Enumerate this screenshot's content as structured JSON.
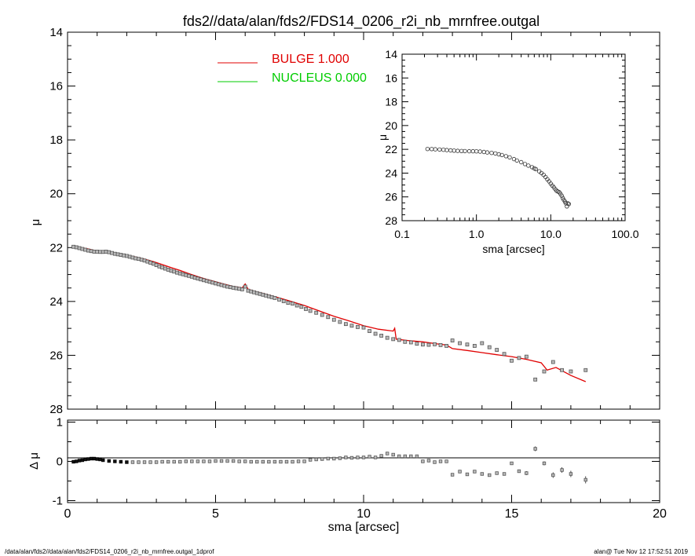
{
  "title": "fds2//data/alan/fds2/FDS14_0206_r2i_nb_mrnfree.outgal",
  "footer_left": "/data/alan/fds2//data/alan/fds2/FDS14_0206_r2i_nb_mrnfree.outgal_1dprof",
  "footer_right": "alan@  Tue Nov 12 17:52:51 2019",
  "colors": {
    "bulge": "#e00000",
    "nucleus": "#00cc00",
    "data": "#555555",
    "axis": "#000000"
  },
  "chart_data": [
    {
      "id": "main",
      "type": "scatter",
      "xlabel": "sma [arcsec]",
      "ylabel": "μ",
      "xlim": [
        0,
        20
      ],
      "ylim": [
        28,
        14
      ],
      "xticks": [
        0,
        5,
        10,
        15,
        20
      ],
      "yticks": [
        14,
        16,
        18,
        20,
        22,
        24,
        26,
        28
      ],
      "legend": {
        "placement": "top-center",
        "entries": [
          {
            "label": "BULGE  1.000",
            "color": "#e00000"
          },
          {
            "label": "NUCLEUS  0.000",
            "color": "#00cc00"
          }
        ]
      },
      "observed": {
        "x": [
          0.2,
          0.3,
          0.4,
          0.5,
          0.6,
          0.7,
          0.8,
          0.9,
          1.0,
          1.1,
          1.2,
          1.3,
          1.4,
          1.5,
          1.6,
          1.7,
          1.8,
          1.9,
          2.0,
          2.1,
          2.2,
          2.3,
          2.4,
          2.5,
          2.6,
          2.7,
          2.8,
          2.9,
          3.0,
          3.1,
          3.2,
          3.3,
          3.4,
          3.5,
          3.6,
          3.7,
          3.8,
          3.9,
          4.0,
          4.1,
          4.2,
          4.3,
          4.4,
          4.5,
          4.6,
          4.7,
          4.8,
          4.9,
          5.0,
          5.1,
          5.2,
          5.3,
          5.4,
          5.5,
          5.6,
          5.7,
          5.8,
          5.9,
          6.0,
          6.1,
          6.2,
          6.3,
          6.4,
          6.5,
          6.6,
          6.7,
          6.8,
          6.9,
          7.0,
          7.15,
          7.3,
          7.45,
          7.6,
          7.75,
          7.9,
          8.05,
          8.2,
          8.4,
          8.6,
          8.8,
          9.0,
          9.2,
          9.4,
          9.6,
          9.8,
          10.0,
          10.2,
          10.4,
          10.6,
          10.8,
          11.0,
          11.2,
          11.4,
          11.6,
          11.8,
          12.0,
          12.2,
          12.4,
          12.6,
          12.8,
          13.0,
          13.25,
          13.5,
          13.75,
          14.0,
          14.25,
          14.5,
          14.75,
          15.0,
          15.25,
          15.5,
          15.8,
          16.1,
          16.4,
          16.7,
          17.0,
          17.5
        ],
        "y": [
          21.97,
          21.99,
          22.02,
          22.05,
          22.08,
          22.11,
          22.13,
          22.15,
          22.15,
          22.16,
          22.16,
          22.15,
          22.17,
          22.2,
          22.23,
          22.25,
          22.27,
          22.29,
          22.31,
          22.34,
          22.37,
          22.4,
          22.42,
          22.45,
          22.48,
          22.52,
          22.56,
          22.6,
          22.65,
          22.7,
          22.74,
          22.78,
          22.82,
          22.86,
          22.89,
          22.93,
          22.96,
          22.99,
          23.02,
          23.05,
          23.08,
          23.12,
          23.15,
          23.18,
          23.21,
          23.24,
          23.27,
          23.3,
          23.33,
          23.36,
          23.39,
          23.42,
          23.45,
          23.47,
          23.49,
          23.51,
          23.53,
          23.55,
          23.45,
          23.6,
          23.63,
          23.66,
          23.69,
          23.72,
          23.75,
          23.78,
          23.81,
          23.84,
          23.87,
          23.93,
          23.99,
          24.05,
          24.08,
          24.15,
          24.2,
          24.28,
          24.35,
          24.42,
          24.5,
          24.58,
          24.68,
          24.76,
          24.84,
          24.9,
          24.95,
          24.97,
          25.1,
          25.2,
          25.27,
          25.35,
          25.4,
          25.43,
          25.5,
          25.52,
          25.57,
          25.6,
          25.61,
          25.59,
          25.62,
          25.65,
          25.45,
          25.55,
          25.6,
          25.65,
          25.55,
          25.7,
          25.8,
          25.95,
          26.2,
          26.1,
          26.05,
          26.9,
          26.6,
          26.25,
          26.55,
          26.6,
          26.55
        ]
      },
      "bulge_model": {
        "name": "BULGE  1.000",
        "x": [
          0.2,
          0.3,
          0.5,
          0.7,
          0.9,
          1.1,
          1.3,
          1.5,
          1.7,
          2.0,
          2.3,
          2.6,
          2.9,
          3.2,
          3.5,
          3.8,
          4.1,
          4.4,
          4.7,
          5.0,
          5.3,
          5.6,
          5.9,
          6.0,
          6.1,
          6.3,
          6.6,
          7.0,
          7.5,
          8.0,
          8.5,
          9.0,
          9.5,
          10.0,
          10.5,
          11.0,
          11.05,
          11.1,
          11.5,
          12.0,
          12.5,
          12.8,
          13.0,
          13.5,
          14.0,
          14.5,
          15.0,
          15.5,
          16.0,
          16.2,
          16.5,
          17.0,
          17.5
        ],
        "y": [
          21.95,
          21.97,
          22.01,
          22.05,
          22.1,
          22.12,
          22.13,
          22.17,
          22.22,
          22.28,
          22.35,
          22.43,
          22.52,
          22.63,
          22.74,
          22.85,
          22.97,
          23.08,
          23.18,
          23.27,
          23.36,
          23.44,
          23.5,
          23.35,
          23.55,
          23.62,
          23.7,
          23.82,
          23.98,
          24.15,
          24.35,
          24.55,
          24.72,
          24.9,
          25.03,
          25.1,
          25.0,
          25.4,
          25.45,
          25.5,
          25.58,
          25.62,
          25.75,
          25.82,
          25.9,
          25.98,
          26.05,
          26.15,
          26.28,
          26.55,
          26.45,
          26.75,
          26.98
        ]
      }
    },
    {
      "id": "residual",
      "type": "scatter",
      "xlabel": "sma [arcsec]",
      "ylabel": "Δ μ",
      "xlim": [
        0,
        20
      ],
      "ylim": [
        -1.05,
        1.05
      ],
      "xticks": [
        0,
        5,
        10,
        15,
        20
      ],
      "yticks": [
        -1,
        0,
        1
      ],
      "zero_line": 0,
      "x": [
        0.2,
        0.3,
        0.4,
        0.5,
        0.6,
        0.7,
        0.8,
        0.9,
        1.0,
        1.1,
        1.2,
        1.4,
        1.6,
        1.8,
        2.0,
        2.2,
        2.4,
        2.6,
        2.8,
        3.0,
        3.2,
        3.4,
        3.6,
        3.8,
        4.0,
        4.2,
        4.4,
        4.6,
        4.8,
        5.0,
        5.2,
        5.4,
        5.6,
        5.8,
        6.0,
        6.2,
        6.4,
        6.6,
        6.8,
        7.0,
        7.2,
        7.4,
        7.6,
        7.8,
        8.0,
        8.2,
        8.4,
        8.6,
        8.8,
        9.0,
        9.2,
        9.4,
        9.6,
        9.8,
        10.0,
        10.2,
        10.4,
        10.6,
        10.8,
        11.0,
        11.2,
        11.4,
        11.6,
        11.8,
        12.0,
        12.2,
        12.4,
        12.6,
        12.8,
        13.0,
        13.25,
        13.5,
        13.75,
        14.0,
        14.25,
        14.5,
        14.75,
        15.0,
        15.25,
        15.5,
        15.8,
        16.1,
        16.4,
        16.7,
        17.0,
        17.5
      ],
      "y": [
        -0.01,
        0.0,
        0.02,
        0.03,
        0.05,
        0.06,
        0.07,
        0.07,
        0.06,
        0.05,
        0.03,
        0.01,
        0.0,
        -0.01,
        -0.02,
        -0.02,
        -0.02,
        -0.02,
        -0.02,
        -0.02,
        -0.01,
        -0.01,
        -0.01,
        -0.01,
        0.0,
        0.0,
        0.0,
        0.0,
        0.0,
        0.01,
        0.01,
        0.01,
        0.01,
        0.0,
        0.0,
        -0.01,
        -0.01,
        -0.01,
        -0.01,
        -0.01,
        -0.01,
        -0.01,
        -0.01,
        0.0,
        0.0,
        0.04,
        0.05,
        0.06,
        0.07,
        0.07,
        0.08,
        0.1,
        0.09,
        0.1,
        0.1,
        0.12,
        0.1,
        0.14,
        0.2,
        0.17,
        0.13,
        0.13,
        0.13,
        0.13,
        0.0,
        0.02,
        -0.02,
        0.0,
        0.0,
        -0.34,
        -0.26,
        -0.33,
        -0.26,
        -0.32,
        -0.35,
        -0.3,
        -0.32,
        -0.05,
        -0.25,
        -0.3,
        0.32,
        -0.05,
        -0.35,
        -0.22,
        -0.32,
        -0.47
      ],
      "err": [
        0.01,
        0.01,
        0.01,
        0.01,
        0.01,
        0.01,
        0.01,
        0.01,
        0.01,
        0.01,
        0.01,
        0.01,
        0.01,
        0.01,
        0.01,
        0.01,
        0.01,
        0.01,
        0.01,
        0.01,
        0.01,
        0.01,
        0.01,
        0.01,
        0.01,
        0.01,
        0.01,
        0.01,
        0.01,
        0.01,
        0.01,
        0.01,
        0.01,
        0.01,
        0.01,
        0.01,
        0.01,
        0.01,
        0.01,
        0.01,
        0.01,
        0.01,
        0.01,
        0.01,
        0.01,
        0.01,
        0.01,
        0.01,
        0.01,
        0.01,
        0.01,
        0.01,
        0.01,
        0.01,
        0.01,
        0.01,
        0.01,
        0.02,
        0.02,
        0.02,
        0.02,
        0.02,
        0.02,
        0.02,
        0.02,
        0.02,
        0.02,
        0.02,
        0.02,
        0.03,
        0.03,
        0.03,
        0.03,
        0.03,
        0.03,
        0.03,
        0.03,
        0.04,
        0.04,
        0.05,
        0.06,
        0.05,
        0.07,
        0.07,
        0.08,
        0.09
      ]
    },
    {
      "id": "inset",
      "type": "scatter",
      "xlabel": "sma [arcsec]",
      "ylabel": "μ",
      "xscale": "log",
      "xlim": [
        0.1,
        100
      ],
      "ylim": [
        28,
        14
      ],
      "xticks": [
        0.1,
        1,
        10,
        100
      ],
      "xticklabels": [
        "0.1",
        "1.0",
        "10.0",
        "100.0"
      ],
      "yticks": [
        14,
        16,
        18,
        20,
        22,
        24,
        26,
        28
      ],
      "x": [
        0.22,
        0.25,
        0.28,
        0.32,
        0.36,
        0.4,
        0.45,
        0.5,
        0.56,
        0.63,
        0.7,
        0.8,
        0.9,
        1.0,
        1.12,
        1.26,
        1.4,
        1.6,
        1.8,
        2.0,
        2.2,
        2.5,
        2.8,
        3.2,
        3.5,
        4.0,
        4.5,
        5.0,
        5.6,
        6.0,
        6.3,
        7.0,
        7.5,
        8.0,
        8.5,
        9.0,
        9.5,
        10.0,
        10.5,
        11.0,
        11.5,
        12.0,
        12.5,
        13.0,
        13.5,
        14.0,
        14.5,
        15.0,
        15.5,
        16.0,
        16.5,
        17.0,
        17.5
      ],
      "y": [
        21.97,
        21.98,
        22.0,
        22.02,
        22.04,
        22.06,
        22.09,
        22.11,
        22.13,
        22.14,
        22.15,
        22.16,
        22.16,
        22.17,
        22.19,
        22.22,
        22.26,
        22.3,
        22.35,
        22.42,
        22.48,
        22.58,
        22.68,
        22.82,
        22.94,
        23.08,
        23.24,
        23.37,
        23.5,
        23.6,
        23.66,
        23.85,
        24.0,
        24.15,
        24.33,
        24.52,
        24.7,
        24.88,
        25.05,
        25.2,
        25.35,
        25.5,
        25.55,
        25.6,
        25.75,
        25.9,
        26.1,
        26.25,
        26.4,
        26.55,
        26.8,
        26.55,
        26.6
      ]
    }
  ]
}
